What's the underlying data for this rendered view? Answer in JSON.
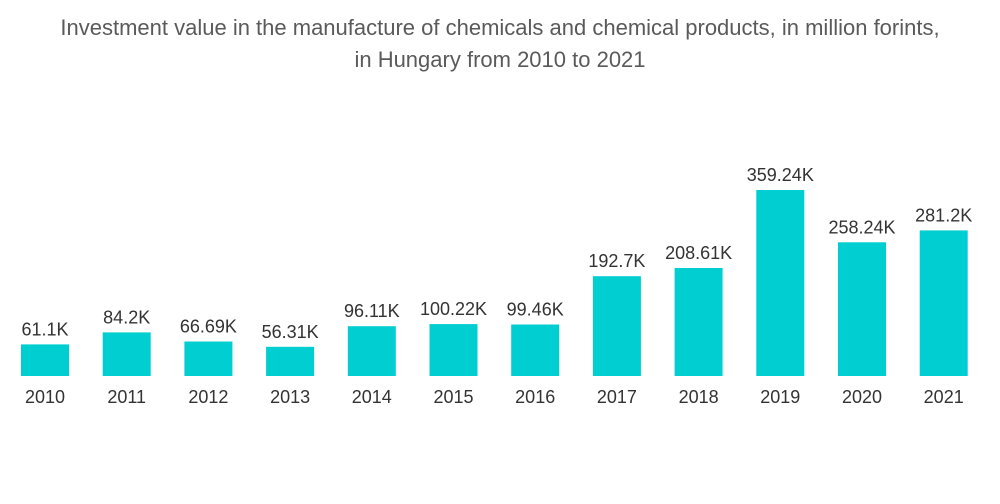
{
  "chart_data": {
    "type": "bar",
    "title_lines": [
      "Investment value in the manufacture of chemicals and chemical products, in million forints,",
      "in Hungary from 2010 to 2021"
    ],
    "categories": [
      "2010",
      "2011",
      "2012",
      "2013",
      "2014",
      "2015",
      "2016",
      "2017",
      "2018",
      "2019",
      "2020",
      "2021"
    ],
    "values": [
      61.1,
      84.2,
      66.69,
      56.31,
      96.11,
      100.22,
      99.46,
      192.7,
      208.61,
      359.24,
      258.24,
      281.2
    ],
    "value_labels": [
      "61.1K",
      "84.2K",
      "66.69K",
      "56.31K",
      "96.11K",
      "100.22K",
      "99.46K",
      "192.7K",
      "208.61K",
      "359.24K",
      "258.24K",
      "281.2K"
    ],
    "unit": "thousand million forints",
    "xlabel": "",
    "ylabel": "",
    "ylim": [
      0,
      359.24
    ],
    "grid": false,
    "legend": "none",
    "colors": {
      "bar": "#00ced1"
    }
  }
}
